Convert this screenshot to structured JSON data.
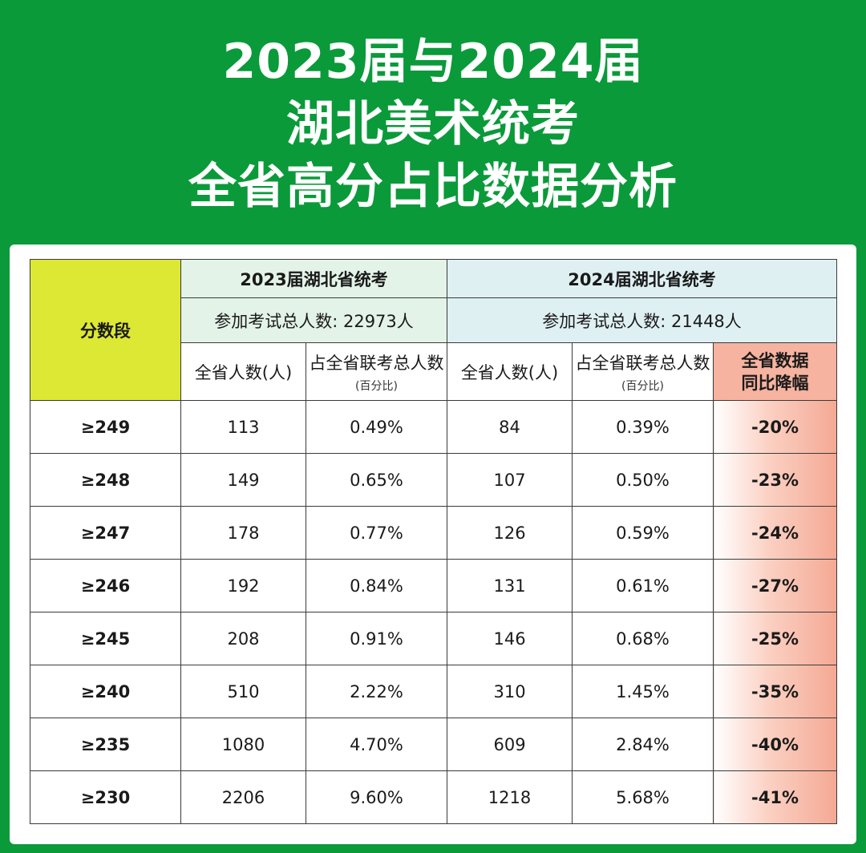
{
  "title": {
    "line1": "2023届与2024届",
    "line2": "湖北美术统考",
    "line3": "全省高分占比数据分析"
  },
  "table": {
    "segment_header": "分数段",
    "year2023": {
      "header": "2023届湖北省统考",
      "total": "参加考试总人数: 22973人",
      "count_header": "全省人数(人)",
      "pct_header": "占全省联考总人数",
      "pct_sub": "(百分比)"
    },
    "year2024": {
      "header": "2024届湖北省统考",
      "total": "参加考试总人数: 21448人",
      "count_header": "全省人数(人)",
      "pct_header": "占全省联考总人数",
      "pct_sub": "(百分比)"
    },
    "drop_header_line1": "全省数据",
    "drop_header_line2": "同比降幅",
    "rows": [
      {
        "segment": "≥249",
        "c2023": "113",
        "p2023": "0.49%",
        "c2024": "84",
        "p2024": "0.39%",
        "drop": "-20%"
      },
      {
        "segment": "≥248",
        "c2023": "149",
        "p2023": "0.65%",
        "c2024": "107",
        "p2024": "0.50%",
        "drop": "-23%"
      },
      {
        "segment": "≥247",
        "c2023": "178",
        "p2023": "0.77%",
        "c2024": "126",
        "p2024": "0.59%",
        "drop": "-24%"
      },
      {
        "segment": "≥246",
        "c2023": "192",
        "p2023": "0.84%",
        "c2024": "131",
        "p2024": "0.61%",
        "drop": "-27%"
      },
      {
        "segment": "≥245",
        "c2023": "208",
        "p2023": "0.91%",
        "c2024": "146",
        "p2024": "0.68%",
        "drop": "-25%"
      },
      {
        "segment": "≥240",
        "c2023": "510",
        "p2023": "2.22%",
        "c2024": "310",
        "p2024": "1.45%",
        "drop": "-35%"
      },
      {
        "segment": "≥235",
        "c2023": "1080",
        "p2023": "4.70%",
        "c2024": "609",
        "p2024": "2.84%",
        "drop": "-40%"
      },
      {
        "segment": "≥230",
        "c2023": "2206",
        "p2023": "9.60%",
        "c2024": "1218",
        "p2024": "5.68%",
        "drop": "-41%"
      }
    ]
  },
  "colors": {
    "background_green": "#0a9a3a",
    "segment_header_yellow": "#dde834",
    "year2023_header": "#e3f3e8",
    "year2024_header": "#dff0f3",
    "drop_column": "#f4a994"
  }
}
